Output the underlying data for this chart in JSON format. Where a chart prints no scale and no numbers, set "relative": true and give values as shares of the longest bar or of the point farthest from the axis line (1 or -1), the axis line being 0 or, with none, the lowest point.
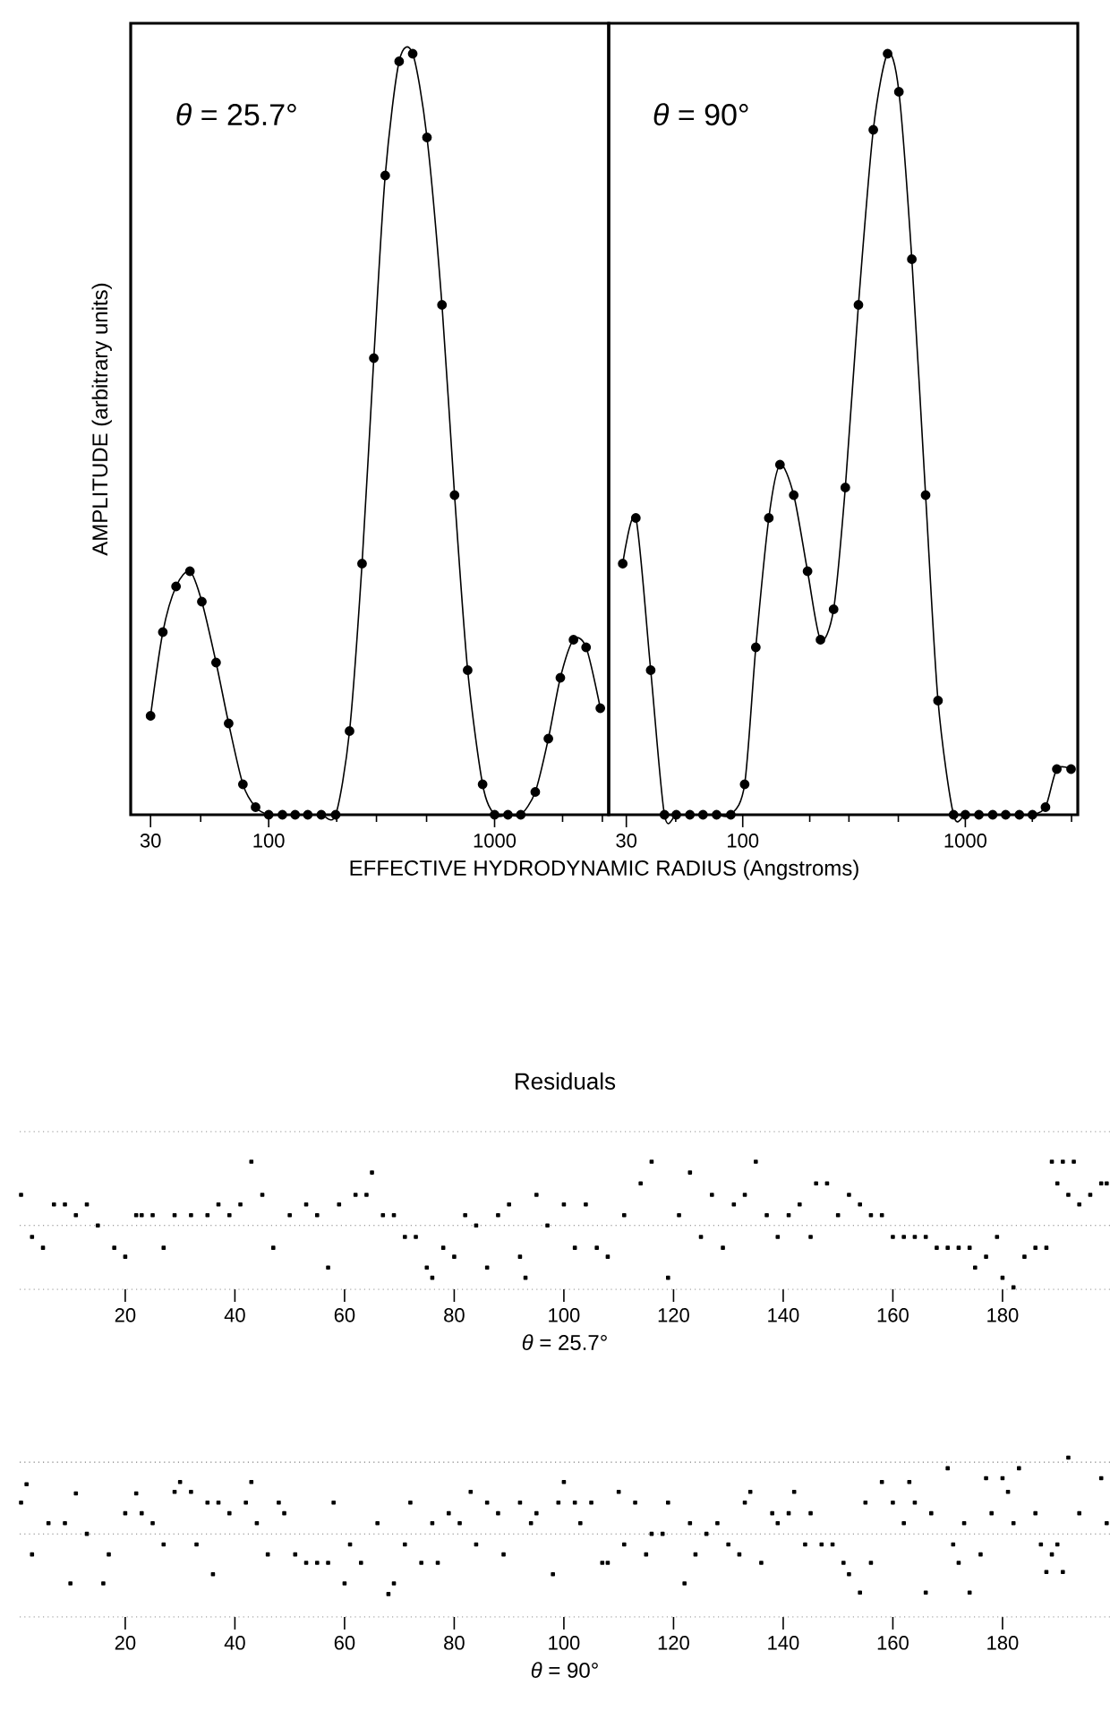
{
  "chart_data": [
    {
      "type": "line",
      "relative": true,
      "log": "x",
      "marker": "circle",
      "color": "#000000",
      "ylabel": "AMPLITUDE  (arbitrary  units)",
      "xlabel": "EFFECTIVE  HYDRODYNAMIC  RADIUS  (Angstroms)",
      "annotations": [
        "*θ* = 25.7°"
      ],
      "xlim": [
        24.5,
        3200
      ],
      "xticks": [
        30,
        {
          "value": 50,
          "label": null
        },
        100,
        {
          "value": 200,
          "label": null
        },
        {
          "value": 300,
          "label": null
        },
        {
          "value": 500,
          "label": null
        },
        1000,
        {
          "value": 2000,
          "label": null
        },
        {
          "value": 3000,
          "label": null
        }
      ],
      "x": [
        30,
        34,
        38.9,
        44.8,
        50.6,
        58.5,
        66.5,
        76.9,
        87.5,
        100,
        115,
        131,
        149,
        171,
        198,
        228,
        259,
        292,
        328,
        378,
        434,
        502,
        585,
        665,
        760,
        885,
        1000,
        1146,
        1306,
        1514,
        1730,
        1955,
        2235,
        2541,
        2938
      ],
      "values": [
        0.13,
        0.24,
        0.3,
        0.32,
        0.28,
        0.2,
        0.12,
        0.04,
        0.01,
        0,
        0,
        0,
        0,
        0,
        0,
        0.11,
        0.33,
        0.6,
        0.84,
        0.99,
        1,
        0.89,
        0.67,
        0.42,
        0.19,
        0.04,
        0,
        0,
        0,
        0.03,
        0.1,
        0.18,
        0.23,
        0.22,
        0.14
      ]
    },
    {
      "type": "line",
      "relative": true,
      "log": "x",
      "marker": "circle",
      "color": "#000000",
      "annotations": [
        "*θ* = 90°"
      ],
      "xlim": [
        25,
        3200
      ],
      "xticks": [
        30,
        {
          "value": 50,
          "label": null
        },
        100,
        {
          "value": 200,
          "label": null
        },
        {
          "value": 300,
          "label": null
        },
        {
          "value": 500,
          "label": null
        },
        1000,
        {
          "value": 2000,
          "label": null
        },
        {
          "value": 3000,
          "label": null
        }
      ],
      "x": [
        28.9,
        33.1,
        38.6,
        44.5,
        50.3,
        57.9,
        66.3,
        76.3,
        88.4,
        102,
        114.5,
        131,
        147,
        169.5,
        195.5,
        223.5,
        256,
        289,
        331,
        386,
        447.5,
        503,
        575,
        663,
        754,
        885,
        1000,
        1151,
        1327,
        1518,
        1749,
        2002,
        2291,
        2576,
        2985
      ],
      "values": [
        0.33,
        0.39,
        0.19,
        0,
        0,
        0,
        0,
        0,
        0,
        0.04,
        0.22,
        0.39,
        0.46,
        0.42,
        0.32,
        0.23,
        0.27,
        0.43,
        0.67,
        0.9,
        1,
        0.95,
        0.73,
        0.42,
        0.15,
        0,
        0,
        0,
        0,
        0,
        0,
        0,
        0.01,
        0.06,
        0.06
      ]
    },
    {
      "type": "scatter",
      "relative": true,
      "marker": "square",
      "color": "#000000",
      "title": "Residuals",
      "xlabel": "*θ* = 25.7°",
      "xlim": [
        0.75,
        199.6
      ],
      "xticks": [
        20,
        40,
        60,
        80,
        100,
        120,
        140,
        160,
        180
      ],
      "ref_lines": [
        {
          "axis": "y",
          "value": 1.47,
          "line_style": "dotted"
        },
        {
          "axis": "y",
          "value": 0,
          "line_style": "dotted"
        },
        {
          "axis": "y",
          "value": -1,
          "line_style": "dotted"
        }
      ],
      "x": [
        1,
        3,
        5,
        7,
        9,
        11,
        13,
        15,
        18,
        20,
        22,
        23,
        25,
        27,
        29,
        32,
        35,
        37,
        39,
        41,
        43,
        45,
        47,
        50,
        53,
        55,
        57,
        59,
        62,
        64,
        65,
        67,
        69,
        71,
        73,
        75,
        76,
        78,
        80,
        82,
        84,
        86,
        88,
        90,
        92,
        93,
        95,
        97,
        100,
        102,
        104,
        106,
        108,
        111,
        114,
        116,
        119,
        121,
        123,
        125,
        127,
        129,
        131,
        133,
        135,
        137,
        139,
        141,
        143,
        145,
        146,
        148,
        150,
        152,
        154,
        156,
        158,
        160,
        162,
        164,
        166,
        168,
        170,
        172,
        174,
        175,
        177,
        179,
        180,
        182,
        184,
        186,
        188,
        189,
        190,
        191,
        192,
        193,
        194,
        196,
        198,
        199
      ],
      "values": [
        0.48,
        -0.18,
        -0.35,
        0.33,
        0.33,
        0.16,
        0.33,
        0,
        -0.35,
        -0.49,
        0.16,
        0.16,
        0.16,
        -0.35,
        0.16,
        0.16,
        0.16,
        0.33,
        0.16,
        0.33,
        1,
        0.48,
        -0.35,
        0.16,
        0.33,
        0.16,
        -0.66,
        0.33,
        0.48,
        0.48,
        0.83,
        0.16,
        0.16,
        -0.18,
        -0.18,
        -0.66,
        -0.82,
        -0.35,
        -0.49,
        0.16,
        0,
        -0.66,
        0.16,
        0.33,
        -0.49,
        -0.82,
        0.48,
        0,
        0.33,
        -0.35,
        0.33,
        -0.35,
        -0.49,
        0.16,
        0.66,
        1,
        -0.82,
        0.16,
        0.83,
        -0.18,
        0.48,
        -0.35,
        0.33,
        0.48,
        1,
        0.16,
        -0.18,
        0.16,
        0.33,
        -0.18,
        0.66,
        0.66,
        0.16,
        0.48,
        0.33,
        0.16,
        0.16,
        -0.18,
        -0.18,
        -0.18,
        -0.18,
        -0.35,
        -0.35,
        -0.35,
        -0.35,
        -0.66,
        -0.49,
        -0.18,
        -0.82,
        -0.97,
        -0.49,
        -0.35,
        -0.35,
        1,
        0.66,
        1,
        0.48,
        1,
        0.33,
        0.48,
        0.66,
        0.66
      ]
    },
    {
      "type": "scatter",
      "relative": true,
      "marker": "square",
      "color": "#000000",
      "xlabel": "*θ* = 90°",
      "xlim": [
        0.75,
        199.6
      ],
      "xticks": [
        20,
        40,
        60,
        80,
        100,
        120,
        140,
        160,
        180
      ],
      "ref_lines": [
        {
          "axis": "y",
          "value": 0.94,
          "line_style": "dotted"
        },
        {
          "axis": "y",
          "value": 0,
          "line_style": "dotted"
        },
        {
          "axis": "y",
          "value": -1.09,
          "line_style": "dotted"
        }
      ],
      "x": [
        1,
        2,
        3,
        6,
        9,
        10,
        11,
        13,
        16,
        17,
        20,
        22,
        23,
        25,
        27,
        29,
        30,
        32,
        33,
        35,
        36,
        37,
        39,
        42,
        43,
        44,
        46,
        48,
        49,
        51,
        53,
        55,
        57,
        58,
        60,
        61,
        63,
        66,
        68,
        69,
        71,
        72,
        74,
        76,
        77,
        79,
        81,
        83,
        84,
        86,
        88,
        89,
        92,
        94,
        95,
        98,
        99,
        100,
        102,
        103,
        105,
        107,
        108,
        110,
        111,
        113,
        115,
        116,
        118,
        119,
        122,
        123,
        124,
        126,
        128,
        130,
        132,
        133,
        134,
        136,
        138,
        139,
        141,
        142,
        144,
        145,
        147,
        149,
        151,
        152,
        154,
        155,
        156,
        158,
        160,
        162,
        163,
        164,
        166,
        167,
        170,
        171,
        172,
        173,
        174,
        176,
        177,
        178,
        180,
        181,
        182,
        183,
        186,
        187,
        188,
        189,
        190,
        191,
        192,
        194,
        198,
        199
      ],
      "values": [
        0.41,
        0.65,
        -0.27,
        0.14,
        0.14,
        -0.65,
        0.53,
        0,
        -0.65,
        -0.27,
        0.27,
        0.53,
        0.27,
        0.14,
        -0.14,
        0.55,
        0.68,
        0.55,
        -0.14,
        0.41,
        -0.53,
        0.41,
        0.27,
        0.41,
        0.68,
        0.14,
        -0.27,
        0.41,
        0.27,
        -0.27,
        -0.38,
        -0.38,
        -0.38,
        0.41,
        -0.65,
        -0.14,
        -0.38,
        0.14,
        -0.79,
        -0.65,
        -0.14,
        0.41,
        -0.38,
        0.14,
        -0.38,
        0.27,
        0.14,
        0.55,
        -0.14,
        0.41,
        0.27,
        -0.27,
        0.41,
        0.14,
        0.27,
        -0.53,
        0.41,
        0.68,
        0.41,
        0.14,
        0.41,
        -0.38,
        -0.38,
        0.55,
        -0.14,
        0.41,
        -0.27,
        0,
        0,
        0.41,
        -0.65,
        0.14,
        -0.27,
        0,
        0.14,
        -0.14,
        -0.27,
        0.41,
        0.55,
        -0.38,
        0.27,
        0.14,
        0.27,
        0.55,
        -0.14,
        0.27,
        -0.14,
        -0.14,
        -0.38,
        -0.53,
        -0.77,
        0.41,
        -0.38,
        0.68,
        0.41,
        0.14,
        0.68,
        0.41,
        -0.77,
        0.27,
        0.86,
        -0.14,
        -0.38,
        0.14,
        -0.77,
        -0.27,
        0.73,
        0.27,
        0.73,
        0.55,
        0.14,
        0.86,
        0.27,
        -0.14,
        -0.5,
        -0.27,
        -0.14,
        -0.5,
        1,
        0.27,
        0.73,
        0.14
      ]
    }
  ]
}
